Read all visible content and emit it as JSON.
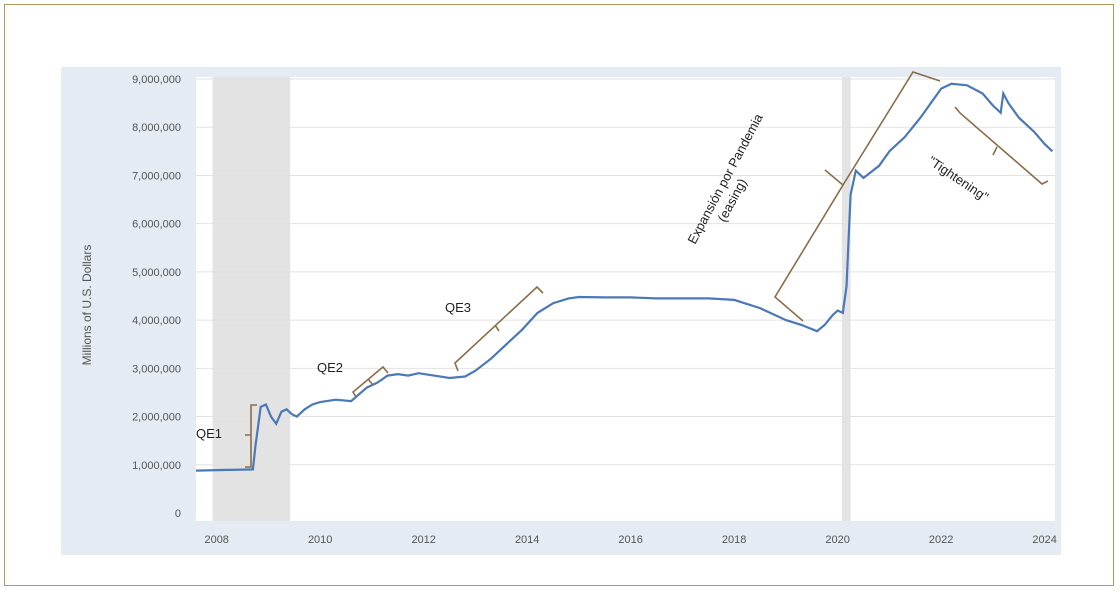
{
  "chart_data": {
    "type": "line",
    "title": "",
    "xlabel": "",
    "ylabel": "Millions of U.S. Dollars",
    "xlim": [
      2007.6,
      2024.2
    ],
    "ylim": [
      0,
      9000000
    ],
    "x_ticks": [
      "2008",
      "2010",
      "2012",
      "2014",
      "2016",
      "2018",
      "2020",
      "2022",
      "2024"
    ],
    "y_ticks": [
      "0",
      "1,000,000",
      "2,000,000",
      "3,000,000",
      "4,000,000",
      "5,000,000",
      "6,000,000",
      "7,000,000",
      "8,000,000",
      "9,000,000"
    ],
    "grid": true,
    "recessions": [
      [
        2007.92,
        2009.42
      ],
      [
        2020.08,
        2020.25
      ]
    ],
    "line_color": "#4a78b8",
    "recession_color": "#e3e3e3",
    "background_color": "#e4ebf2",
    "annotation_color": "#8b6d4a",
    "series": [
      {
        "x": [
          2007.6,
          2008.0,
          2008.5,
          2008.7,
          2008.75,
          2008.85,
          2008.95,
          2009.05,
          2009.15,
          2009.25,
          2009.35,
          2009.45,
          2009.55,
          2009.7,
          2009.85,
          2010.0,
          2010.3,
          2010.6,
          2010.9,
          2011.1,
          2011.3,
          2011.5,
          2011.7,
          2011.9,
          2012.2,
          2012.5,
          2012.8,
          2013.0,
          2013.3,
          2013.6,
          2013.9,
          2014.2,
          2014.5,
          2014.8,
          2015.0,
          2015.5,
          2016.0,
          2016.5,
          2017.0,
          2017.5,
          2018.0,
          2018.5,
          2019.0,
          2019.3,
          2019.6,
          2019.75,
          2019.9,
          2020.0,
          2020.1,
          2020.17,
          2020.25,
          2020.35,
          2020.5,
          2020.8,
          2021.0,
          2021.3,
          2021.6,
          2021.9,
          2022.0,
          2022.2,
          2022.5,
          2022.8,
          2023.0,
          2023.15,
          2023.2,
          2023.3,
          2023.5,
          2023.8,
          2024.0,
          2024.15
        ],
        "y": [
          880000,
          890000,
          900000,
          905000,
          1400000,
          2200000,
          2250000,
          2000000,
          1850000,
          2100000,
          2150000,
          2050000,
          2000000,
          2150000,
          2250000,
          2300000,
          2350000,
          2320000,
          2600000,
          2700000,
          2850000,
          2880000,
          2850000,
          2900000,
          2850000,
          2800000,
          2830000,
          2950000,
          3200000,
          3500000,
          3800000,
          4150000,
          4350000,
          4450000,
          4480000,
          4470000,
          4470000,
          4450000,
          4450000,
          4450000,
          4420000,
          4250000,
          4000000,
          3900000,
          3770000,
          3900000,
          4100000,
          4200000,
          4150000,
          4700000,
          6600000,
          7100000,
          6950000,
          7200000,
          7500000,
          7800000,
          8200000,
          8650000,
          8800000,
          8900000,
          8870000,
          8700000,
          8450000,
          8300000,
          8700000,
          8500000,
          8200000,
          7900000,
          7650000,
          7500000
        ]
      }
    ],
    "annotations": [
      "QE1",
      "QE2",
      "QE3",
      "Expansión por Pandemia",
      "(easing)",
      "\"Tightening\""
    ]
  }
}
